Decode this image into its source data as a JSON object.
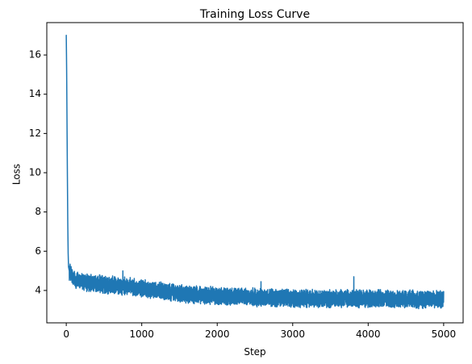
{
  "chart_data": {
    "type": "line",
    "title": "Training Loss Curve",
    "xlabel": "Step",
    "ylabel": "Loss",
    "xlim": [
      -258,
      5258
    ],
    "ylim": [
      2.35,
      17.65
    ],
    "x_ticks": [
      0,
      1000,
      2000,
      3000,
      4000,
      5000
    ],
    "y_ticks": [
      4,
      6,
      8,
      10,
      12,
      14,
      16
    ],
    "grid": false,
    "legend": "none",
    "series": [
      {
        "color": "#1f77b4",
        "x_start": 0,
        "x_end": 5000,
        "points_count": 5001,
        "initial": [
          [
            0,
            17.0
          ],
          [
            5,
            15.2
          ],
          [
            10,
            12.5
          ],
          [
            15,
            9.8
          ],
          [
            20,
            7.4
          ],
          [
            25,
            5.9
          ],
          [
            30,
            5.2
          ],
          [
            40,
            5.0
          ]
        ],
        "trend": [
          [
            40,
            5.0
          ],
          [
            100,
            4.55
          ],
          [
            250,
            4.4
          ],
          [
            500,
            4.3
          ],
          [
            800,
            4.2
          ],
          [
            1000,
            4.1
          ],
          [
            1300,
            3.95
          ],
          [
            1600,
            3.8
          ],
          [
            2000,
            3.72
          ],
          [
            2500,
            3.65
          ],
          [
            3000,
            3.6
          ],
          [
            3500,
            3.58
          ],
          [
            4000,
            3.57
          ],
          [
            4500,
            3.56
          ],
          [
            5000,
            3.55
          ]
        ],
        "noise_amplitude": 0.4,
        "notable_spikes": [
          [
            3810,
            4.7
          ],
          [
            2580,
            4.45
          ],
          [
            750,
            5.0
          ]
        ]
      }
    ]
  }
}
